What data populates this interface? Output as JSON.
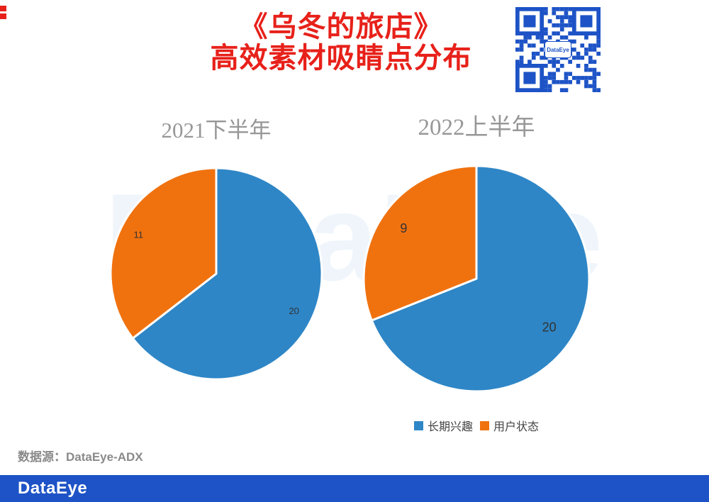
{
  "page": {
    "title": {
      "line1": "《乌冬的旅店》",
      "line2": "高效素材吸睛点分布"
    },
    "watermark": "DataEye",
    "source_note": "数据源：DataEye-ADX",
    "footer": {
      "logo": "DataEye"
    },
    "qr": {
      "label": "DataEye"
    },
    "colors": {
      "title_red": "#E7211A",
      "brand_blue": "#1D53C6",
      "pie_blue": "#2E86C6",
      "pie_orange": "#F0720F",
      "chart_title_gray": "#979797",
      "label_dark": "#333333"
    }
  },
  "chart_data": [
    {
      "type": "pie",
      "title": "2021下半年",
      "categories": [
        "长期兴趣",
        "用户状态"
      ],
      "values": [
        20,
        11
      ],
      "colors": [
        "#2E86C6",
        "#F0720F"
      ],
      "start_angle_deg": 0,
      "direction": "clockwise",
      "label_radius": 0.82,
      "label_font_px": 13,
      "legend": false
    },
    {
      "type": "pie",
      "title": "2022上半年",
      "categories": [
        "长期兴趣",
        "用户状态"
      ],
      "values": [
        20,
        9
      ],
      "colors": [
        "#2E86C6",
        "#F0720F"
      ],
      "start_angle_deg": 0,
      "direction": "clockwise",
      "label_radius": 0.78,
      "label_font_px": 18,
      "legend": true
    }
  ],
  "legend": {
    "position": "below-right-chart",
    "items": [
      {
        "label": "长期兴趣",
        "color": "#2E86C6"
      },
      {
        "label": "用户状态",
        "color": "#F0720F"
      }
    ]
  }
}
